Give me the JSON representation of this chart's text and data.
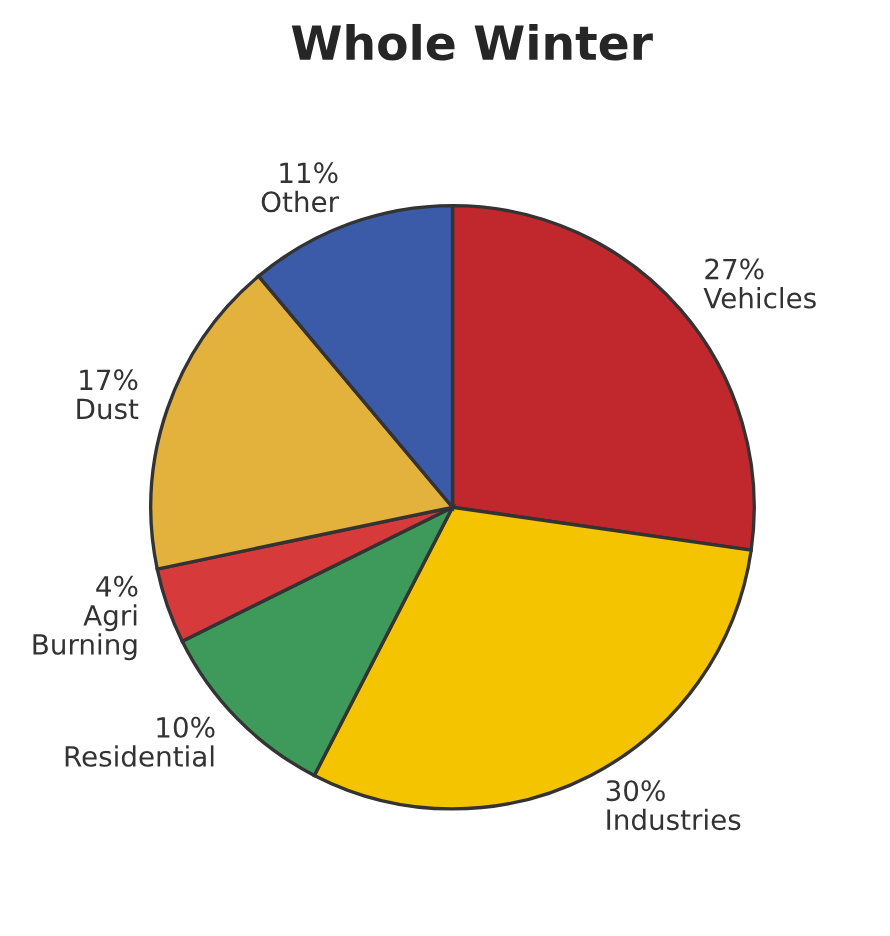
{
  "chart_data": {
    "type": "pie",
    "title": "Whole Winter",
    "categories": [
      "Vehicles",
      "Industries",
      "Residential",
      "Agri Burning",
      "Dust",
      "Other"
    ],
    "values": [
      27,
      30,
      10,
      4,
      17,
      11
    ],
    "value_labels": [
      "27%",
      "30%",
      "10%",
      "4%",
      "17%",
      "11%"
    ],
    "colors": [
      "#c0282e",
      "#f5c400",
      "#3e9a5a",
      "#d63a3a",
      "#e3b23c",
      "#3b5ba8"
    ],
    "legend": false
  }
}
